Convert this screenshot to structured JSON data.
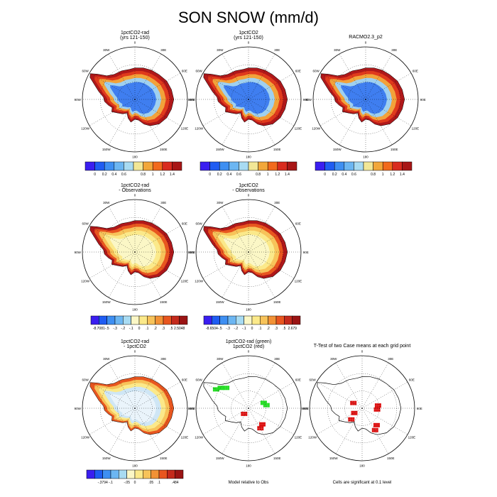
{
  "title": "SON SNOW (mm/d)",
  "chart_data": [
    {
      "type": "heatmap",
      "title": "1pctCO2-rad",
      "subtitle": "(yrs 121-150)",
      "projection": "south polar stereographic",
      "longitude_labels": [
        "0",
        "30E",
        "60E",
        "90E",
        "120E",
        "150E",
        "180",
        "150W",
        "120W",
        "90W",
        "60W",
        "30W"
      ],
      "colorbar": {
        "levels": [
          "0",
          "0.2",
          "0.4",
          "0.6",
          "0.8",
          "1",
          "1.2",
          "1.4"
        ],
        "colors": [
          "#3a1ef0",
          "#1f5cf2",
          "#3e8ff2",
          "#6cb6f2",
          "#a8dbf2",
          "#f2e796",
          "#f2a73a",
          "#f26a1c",
          "#d92b1e",
          "#a81616"
        ]
      }
    },
    {
      "type": "heatmap",
      "title": "1pctCO2",
      "subtitle": "(yrs 121-150)",
      "projection": "south polar stereographic",
      "longitude_labels": [
        "0",
        "30E",
        "60E",
        "90E",
        "120E",
        "150E",
        "180",
        "150W",
        "120W",
        "90W",
        "60W",
        "30W"
      ],
      "colorbar": {
        "levels": [
          "0",
          "0.2",
          "0.4",
          "0.6",
          "0.8",
          "1",
          "1.2",
          "1.4"
        ],
        "colors": [
          "#3a1ef0",
          "#1f5cf2",
          "#3e8ff2",
          "#6cb6f2",
          "#a8dbf2",
          "#f2e796",
          "#f2a73a",
          "#f26a1c",
          "#d92b1e",
          "#a81616"
        ]
      }
    },
    {
      "type": "heatmap",
      "title": "RACMO2.3_p2",
      "projection": "south polar stereographic",
      "longitude_labels": [
        "0",
        "30E",
        "60E",
        "90E",
        "120E",
        "150E",
        "180",
        "150W",
        "120W",
        "90W",
        "60W",
        "30W"
      ],
      "colorbar": {
        "levels": [
          "0",
          "0.2",
          "0.4",
          "0.6",
          "0.8",
          "1",
          "1.2",
          "1.4"
        ],
        "colors": [
          "#3a1ef0",
          "#1f5cf2",
          "#3e8ff2",
          "#6cb6f2",
          "#a8dbf2",
          "#f2e796",
          "#f2a73a",
          "#f26a1c",
          "#d92b1e",
          "#a81616"
        ]
      }
    },
    {
      "type": "heatmap",
      "title": "1pctCO2-rad",
      "subtitle": "- Observations",
      "projection": "south polar stereographic",
      "longitude_labels": [
        "0",
        "30E",
        "60E",
        "90E",
        "120E",
        "150E",
        "180",
        "150W",
        "120W",
        "90W",
        "60W",
        "30W"
      ],
      "colorbar": {
        "levels": [
          "-8.7081",
          "-.5",
          "-.3",
          "-.2",
          "-.1",
          "0",
          ".1",
          ".2",
          ".3",
          ".5",
          "2.5048"
        ],
        "colors": [
          "#3a1ef0",
          "#1f5cf2",
          "#3e8ff2",
          "#6cb6f2",
          "#a8dbf2",
          "#fbf7c6",
          "#fbe98a",
          "#f7c35a",
          "#f29236",
          "#e8561f",
          "#c42a1c",
          "#9a1414"
        ]
      }
    },
    {
      "type": "heatmap",
      "title": "1pctCO2",
      "subtitle": "- Observations",
      "projection": "south polar stereographic",
      "longitude_labels": [
        "0",
        "30E",
        "60E",
        "90E",
        "120E",
        "150E",
        "180",
        "150W",
        "120W",
        "90W",
        "60W",
        "30W"
      ],
      "colorbar": {
        "levels": [
          "-8.6504",
          "-.5",
          "-.3",
          "-.2",
          "-.1",
          "0",
          ".1",
          ".2",
          ".3",
          ".5",
          "2.679"
        ],
        "colors": [
          "#3a1ef0",
          "#1f5cf2",
          "#3e8ff2",
          "#6cb6f2",
          "#a8dbf2",
          "#fbf7c6",
          "#fbe98a",
          "#f7c35a",
          "#f29236",
          "#e8561f",
          "#c42a1c",
          "#9a1414"
        ]
      }
    },
    {
      "type": "heatmap",
      "title": "1pctCO2-rad",
      "subtitle": "- 1pctCO2",
      "projection": "south polar stereographic",
      "longitude_labels": [
        "0",
        "30E",
        "60E",
        "90E",
        "120E",
        "150E",
        "180",
        "150W",
        "120W",
        "90W",
        "60W",
        "30W"
      ],
      "colorbar": {
        "levels": [
          "-.3794",
          "-.1",
          "-.05",
          "0",
          ".05",
          ".1",
          ".484"
        ],
        "colors": [
          "#3a1ef0",
          "#1f5cf2",
          "#3e8ff2",
          "#6cb6f2",
          "#a8dbf2",
          "#fbf7c6",
          "#fbe98a",
          "#f7c35a",
          "#f29236",
          "#e8561f",
          "#c42a1c",
          "#9a1414"
        ]
      }
    },
    {
      "type": "heatmap",
      "title": "1pctCO2-rad (green)",
      "subtitle": "1pctCO2 (red)",
      "footnote": "Model relative to Obs",
      "projection": "south polar stereographic",
      "longitude_labels": [
        "0",
        "30E",
        "60E",
        "90E",
        "120E",
        "150E",
        "180",
        "150W",
        "120W",
        "90W",
        "60W",
        "30W"
      ],
      "marker_colors": [
        "#22dd22",
        "#dd1111"
      ]
    },
    {
      "type": "heatmap",
      "title": "T-Test of two Case means at each grid point",
      "footnote": "Cells are significant at 0.1 level",
      "projection": "south polar stereographic",
      "longitude_labels": [
        "0",
        "30E",
        "60E",
        "90E",
        "120E",
        "150E",
        "180",
        "150W",
        "120W",
        "90W",
        "60W",
        "30W"
      ],
      "marker_colors": [
        "#dd1111"
      ]
    }
  ]
}
